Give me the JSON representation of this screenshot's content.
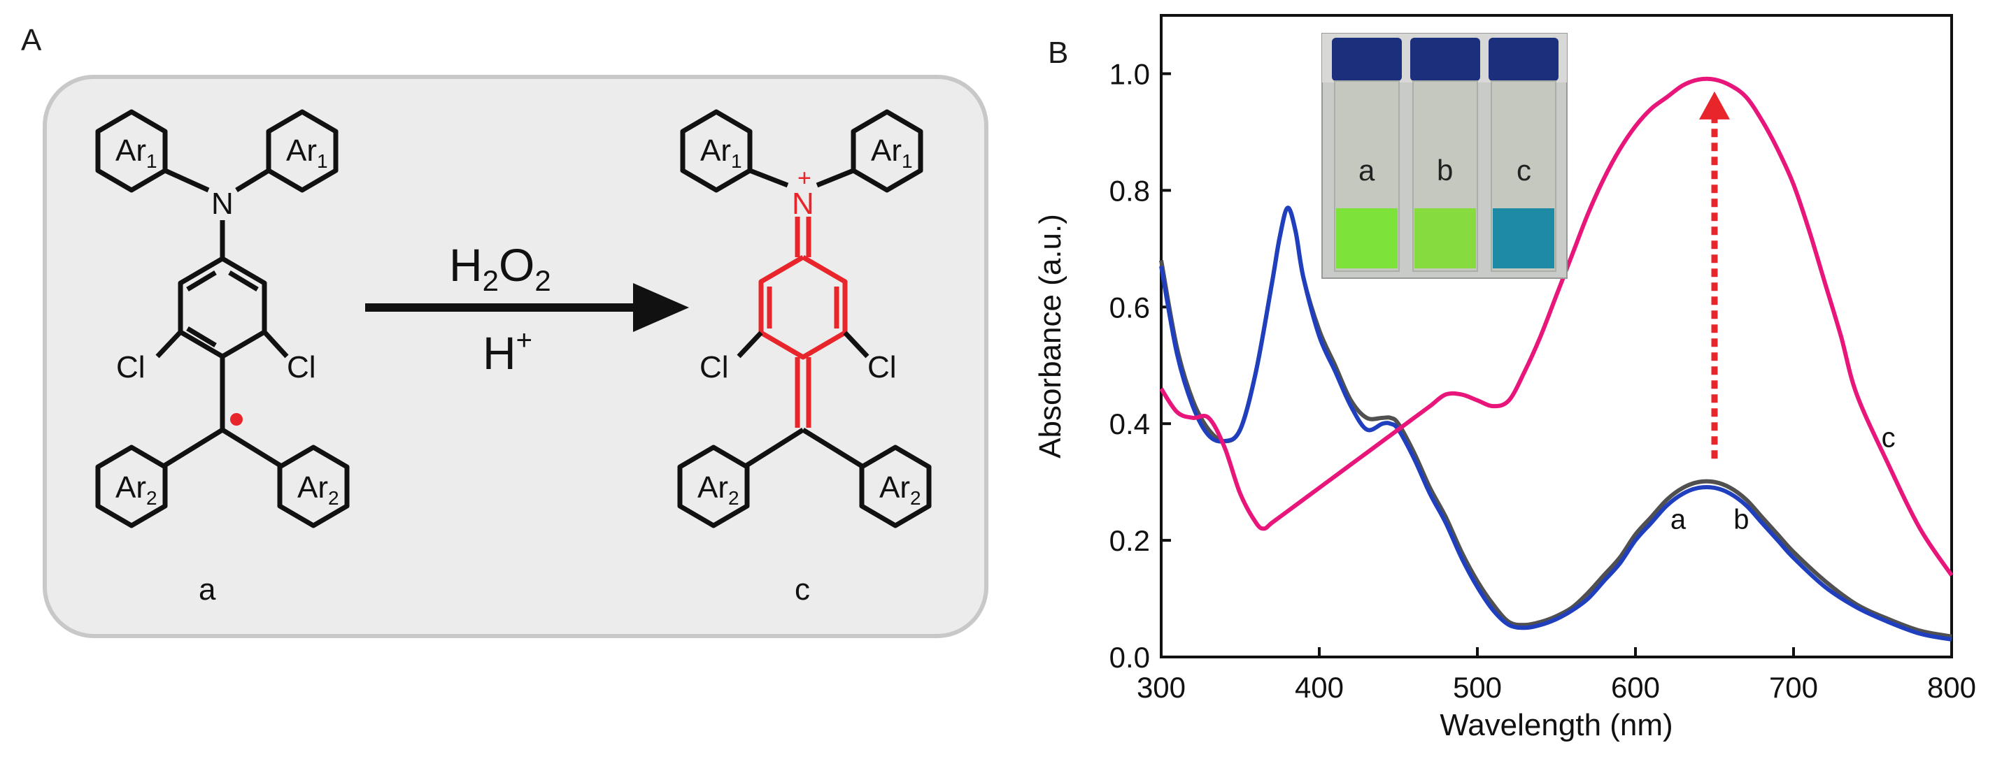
{
  "panel_a": {
    "label": "A",
    "reagent_top": "H",
    "reagent_top_sub1": "2",
    "reagent_top_mid": "O",
    "reagent_top_sub2": "2",
    "reagent_bottom": "H",
    "reagent_bottom_sup": "+",
    "compound_a": "a",
    "compound_c": "c",
    "ar1_main": "Ar",
    "ar1_sub": "1",
    "ar2_main": "Ar",
    "ar2_sub": "2",
    "n_atom": "N",
    "n_charge": "+",
    "cl": "Cl",
    "colors": {
      "radical": "#e8252b",
      "quinoid": "#e8252b",
      "box_fill": "#ececec",
      "box_stroke": "#c8c8c8"
    }
  },
  "panel_b": {
    "label": "B",
    "vial_labels": [
      "a",
      "b",
      "c"
    ],
    "colors": {
      "a": "#505050",
      "b": "#1f3fbf",
      "c": "#e8157a",
      "arrow": "#e8252b"
    }
  },
  "chart_data": {
    "type": "line",
    "title": "",
    "xlabel": "Wavelength (nm)",
    "ylabel": "Absorbance (a.u.)",
    "xlim": [
      300,
      800
    ],
    "ylim": [
      0.0,
      1.1
    ],
    "xticks": [
      300,
      400,
      500,
      600,
      700,
      800
    ],
    "yticks": [
      0.0,
      0.2,
      0.4,
      0.6,
      0.8,
      1.0
    ],
    "xtick_labels": [
      "300",
      "400",
      "500",
      "600",
      "700",
      "800"
    ],
    "ytick_labels": [
      "0.0",
      "0.2",
      "0.4",
      "0.6",
      "0.8",
      "1.0"
    ],
    "grid": false,
    "series": [
      {
        "name": "a",
        "color": "#505050",
        "x": [
          300,
          310,
          320,
          330,
          340,
          350,
          360,
          370,
          375,
          380,
          385,
          390,
          400,
          410,
          420,
          430,
          440,
          445,
          450,
          460,
          470,
          480,
          490,
          500,
          510,
          520,
          530,
          540,
          550,
          560,
          570,
          580,
          590,
          600,
          610,
          620,
          630,
          640,
          650,
          660,
          670,
          680,
          690,
          700,
          720,
          740,
          760,
          780,
          800
        ],
        "y": [
          0.68,
          0.53,
          0.44,
          0.39,
          0.37,
          0.39,
          0.49,
          0.64,
          0.72,
          0.77,
          0.73,
          0.65,
          0.56,
          0.5,
          0.44,
          0.41,
          0.41,
          0.41,
          0.4,
          0.35,
          0.29,
          0.24,
          0.18,
          0.13,
          0.09,
          0.06,
          0.055,
          0.06,
          0.07,
          0.085,
          0.11,
          0.14,
          0.17,
          0.21,
          0.24,
          0.27,
          0.29,
          0.3,
          0.3,
          0.29,
          0.27,
          0.24,
          0.21,
          0.18,
          0.13,
          0.09,
          0.065,
          0.045,
          0.035
        ]
      },
      {
        "name": "b",
        "color": "#1f3fbf",
        "x": [
          300,
          310,
          320,
          330,
          340,
          350,
          360,
          370,
          375,
          380,
          385,
          390,
          400,
          410,
          420,
          430,
          440,
          445,
          450,
          460,
          470,
          480,
          490,
          500,
          510,
          520,
          530,
          540,
          550,
          560,
          570,
          580,
          590,
          600,
          610,
          620,
          630,
          640,
          650,
          660,
          670,
          680,
          690,
          700,
          720,
          740,
          760,
          780,
          800
        ],
        "y": [
          0.67,
          0.52,
          0.43,
          0.38,
          0.37,
          0.39,
          0.49,
          0.64,
          0.72,
          0.77,
          0.73,
          0.65,
          0.55,
          0.49,
          0.43,
          0.39,
          0.4,
          0.4,
          0.39,
          0.34,
          0.28,
          0.23,
          0.17,
          0.12,
          0.08,
          0.055,
          0.05,
          0.055,
          0.065,
          0.08,
          0.1,
          0.13,
          0.16,
          0.2,
          0.23,
          0.26,
          0.28,
          0.29,
          0.29,
          0.28,
          0.26,
          0.23,
          0.2,
          0.17,
          0.12,
          0.085,
          0.06,
          0.04,
          0.03
        ]
      },
      {
        "name": "c",
        "color": "#e8157a",
        "x": [
          300,
          310,
          320,
          330,
          340,
          350,
          360,
          365,
          370,
          380,
          390,
          400,
          410,
          420,
          430,
          440,
          450,
          460,
          470,
          480,
          490,
          500,
          510,
          520,
          530,
          540,
          550,
          560,
          570,
          580,
          590,
          600,
          610,
          620,
          630,
          640,
          650,
          660,
          670,
          680,
          690,
          700,
          710,
          720,
          730,
          740,
          760,
          780,
          800
        ],
        "y": [
          0.46,
          0.42,
          0.41,
          0.41,
          0.36,
          0.28,
          0.23,
          0.22,
          0.23,
          0.25,
          0.27,
          0.29,
          0.31,
          0.33,
          0.35,
          0.37,
          0.39,
          0.41,
          0.43,
          0.45,
          0.45,
          0.44,
          0.43,
          0.44,
          0.49,
          0.55,
          0.62,
          0.69,
          0.76,
          0.82,
          0.87,
          0.91,
          0.94,
          0.96,
          0.98,
          0.99,
          0.99,
          0.98,
          0.96,
          0.92,
          0.87,
          0.81,
          0.73,
          0.64,
          0.55,
          0.45,
          0.33,
          0.22,
          0.14
        ]
      }
    ],
    "annotations": [
      {
        "text": "a",
        "x": 627,
        "y": 0.22
      },
      {
        "text": "b",
        "x": 667,
        "y": 0.22
      },
      {
        "text": "c",
        "x": 760,
        "y": 0.36
      }
    ],
    "arrow": {
      "x": 650,
      "y_from": 0.34,
      "y_to": 0.96
    }
  }
}
